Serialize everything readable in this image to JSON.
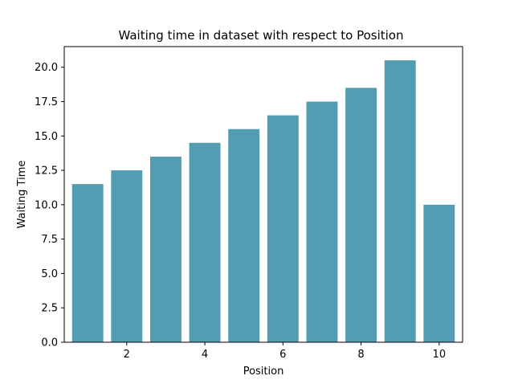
{
  "chart_data": {
    "type": "bar",
    "title": "Waiting time in dataset with respect to Position",
    "xlabel": "Position",
    "ylabel": "Waiting Time",
    "x": [
      1,
      2,
      3,
      4,
      5,
      6,
      7,
      8,
      9,
      10
    ],
    "values": [
      11.5,
      12.5,
      13.5,
      14.5,
      15.5,
      16.5,
      17.5,
      18.5,
      20.5,
      10.0
    ],
    "xlim": [
      0.4,
      10.6
    ],
    "ylim": [
      0,
      21.5
    ],
    "xticks": [
      2,
      4,
      6,
      8,
      10
    ],
    "xtick_labels": [
      "2",
      "4",
      "6",
      "8",
      "10"
    ],
    "yticks": [
      0,
      2.5,
      5,
      7.5,
      10,
      12.5,
      15,
      17.5,
      20
    ],
    "ytick_labels": [
      "0.0",
      "2.5",
      "5.0",
      "7.5",
      "10.0",
      "12.5",
      "15.0",
      "17.5",
      "20.0"
    ],
    "bar_color": "#539db3",
    "grid": false,
    "legend": "none"
  }
}
